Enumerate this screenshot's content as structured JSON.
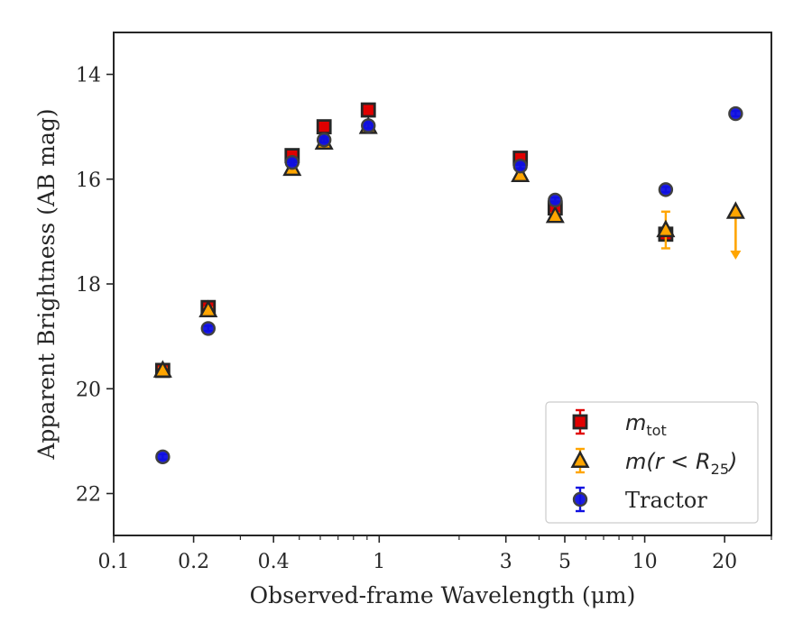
{
  "chart_data": {
    "type": "scatter",
    "title": "",
    "xlabel": "Observed-frame Wavelength (μm)",
    "ylabel": "Apparent Brightness (AB mag)",
    "xscale": "log",
    "xlim": [
      0.1,
      30
    ],
    "ylim": [
      22.8,
      13.2
    ],
    "y_inverted": true,
    "grid": false,
    "legend_position": "bottom-right",
    "x_ticks": [
      {
        "value": 0.1,
        "label": "0.1"
      },
      {
        "value": 0.2,
        "label": "0.2"
      },
      {
        "value": 0.4,
        "label": "0.4"
      },
      {
        "value": 1,
        "label": "1"
      },
      {
        "value": 3,
        "label": "3"
      },
      {
        "value": 5,
        "label": "5"
      },
      {
        "value": 10,
        "label": "10"
      },
      {
        "value": 20,
        "label": "20"
      }
    ],
    "y_ticks": [
      {
        "value": 14,
        "label": "14"
      },
      {
        "value": 16,
        "label": "16"
      },
      {
        "value": 18,
        "label": "18"
      },
      {
        "value": 20,
        "label": "20"
      },
      {
        "value": 22,
        "label": "22"
      }
    ],
    "series": [
      {
        "name": "m_tot",
        "legend_main": "m",
        "legend_sub": "tot",
        "marker": "square",
        "color": "#e00000",
        "edge_color": "#262626",
        "error_color": "#e00000",
        "points": [
          {
            "x": 0.153,
            "y": 19.65,
            "yerr": 0.05
          },
          {
            "x": 0.227,
            "y": 18.45,
            "yerr": 0.05
          },
          {
            "x": 0.47,
            "y": 15.55,
            "yerr": 0.05
          },
          {
            "x": 0.62,
            "y": 15.0,
            "yerr": 0.05
          },
          {
            "x": 0.91,
            "y": 14.68,
            "yerr": 0.05
          },
          {
            "x": 3.4,
            "y": 15.6,
            "yerr": 0.05
          },
          {
            "x": 4.6,
            "y": 16.55,
            "yerr": 0.05
          },
          {
            "x": 12.0,
            "y": 17.05,
            "yerr": 0.07
          }
        ]
      },
      {
        "name": "m(r < R25)",
        "legend_main": "m(r < R",
        "legend_sub": "25",
        "legend_end": ")",
        "marker": "triangle",
        "color": "#ffa500",
        "edge_color": "#262626",
        "error_color": "#ffa500",
        "points": [
          {
            "x": 0.153,
            "y": 19.65,
            "yerr": 0.05
          },
          {
            "x": 0.227,
            "y": 18.5,
            "yerr": 0.05
          },
          {
            "x": 0.47,
            "y": 15.8,
            "yerr": 0.05
          },
          {
            "x": 0.62,
            "y": 15.3,
            "yerr": 0.05
          },
          {
            "x": 0.91,
            "y": 15.0,
            "yerr": 0.05
          },
          {
            "x": 3.4,
            "y": 15.92,
            "yerr": 0.05
          },
          {
            "x": 4.6,
            "y": 16.7,
            "yerr": 0.05
          },
          {
            "x": 12.0,
            "y": 16.97,
            "yerr": 0.35
          },
          {
            "x": 22.0,
            "y": 16.62,
            "upper_limit": true,
            "arrow_to": 17.5
          }
        ]
      },
      {
        "name": "Tractor",
        "marker": "circle",
        "color": "#1010e0",
        "edge_color": "#404040",
        "error_color": "#1010e0",
        "points": [
          {
            "x": 0.153,
            "y": 21.3,
            "yerr": 0.05
          },
          {
            "x": 0.227,
            "y": 18.85,
            "yerr": 0.05
          },
          {
            "x": 0.47,
            "y": 15.68,
            "yerr": 0.05
          },
          {
            "x": 0.62,
            "y": 15.25,
            "yerr": 0.05
          },
          {
            "x": 0.91,
            "y": 14.98,
            "yerr": 0.05
          },
          {
            "x": 3.4,
            "y": 15.75,
            "yerr": 0.05
          },
          {
            "x": 4.6,
            "y": 16.4,
            "yerr": 0.05
          },
          {
            "x": 12.0,
            "y": 16.2,
            "yerr": 0.05
          },
          {
            "x": 22.0,
            "y": 14.75,
            "yerr": 0.05
          }
        ]
      }
    ]
  }
}
